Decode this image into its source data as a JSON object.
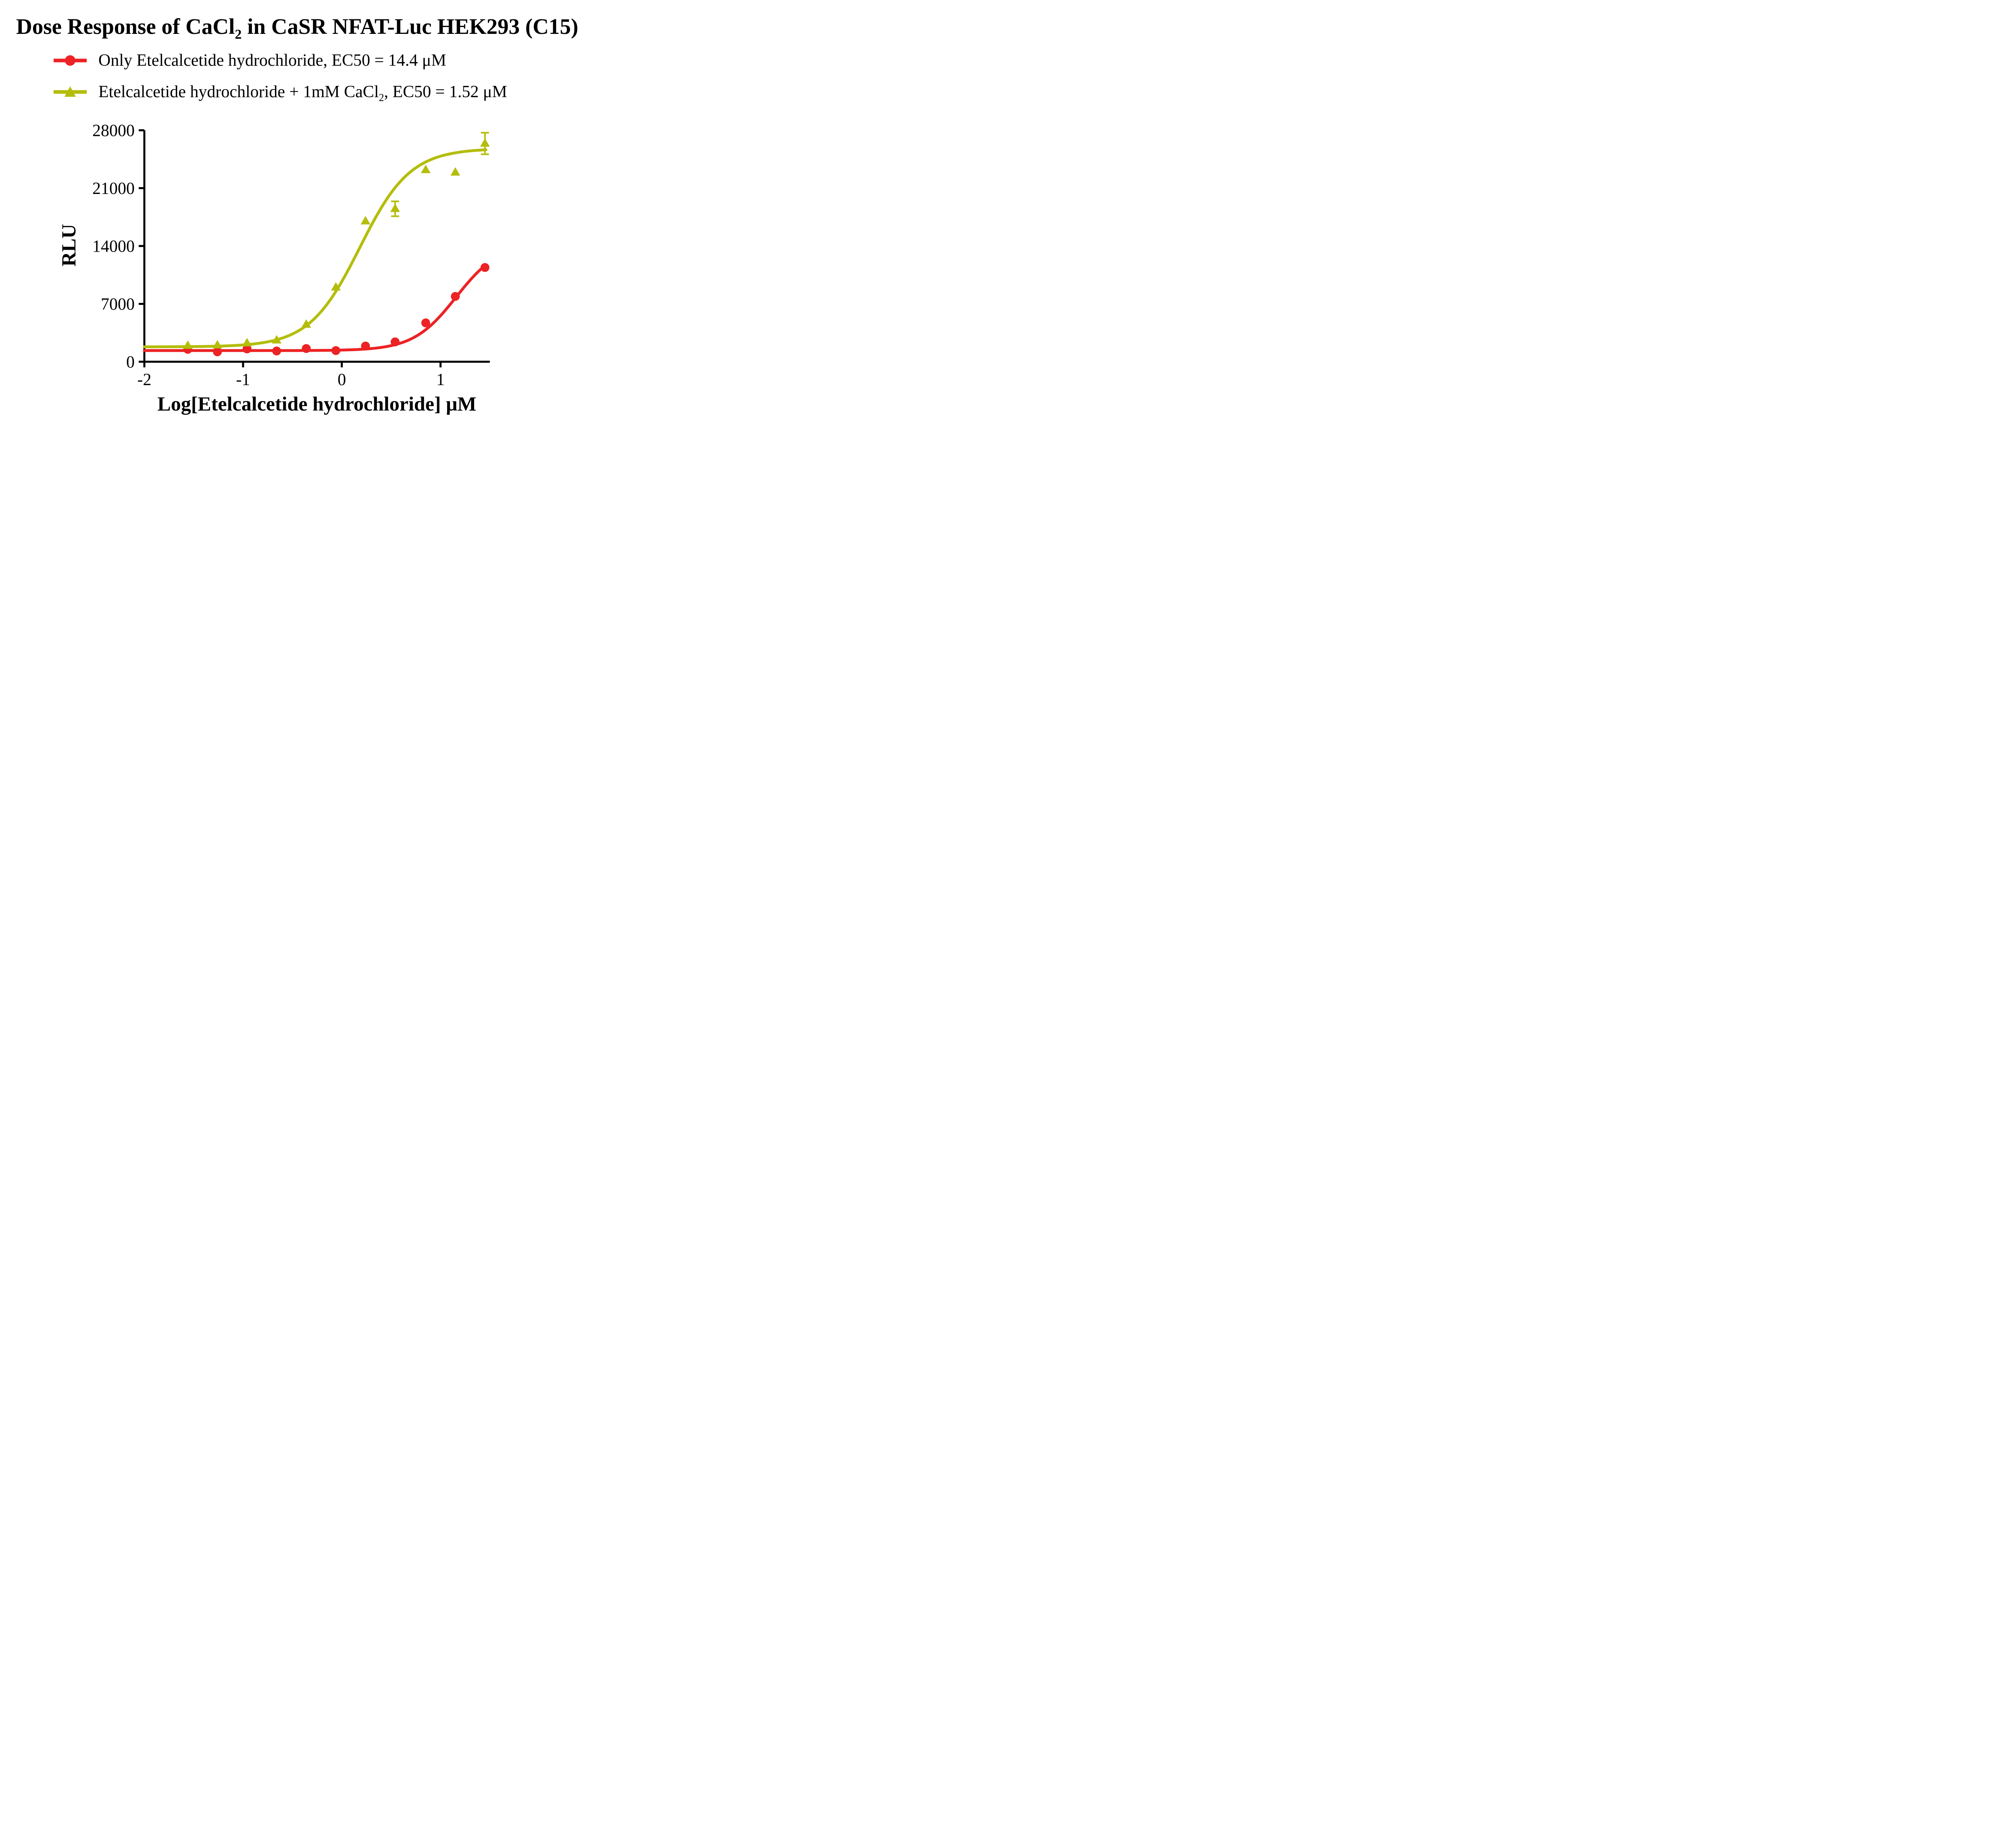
{
  "title": {
    "pre": "Dose Response of CaCl",
    "sub": "2",
    "post": " in CaSR NFAT-Luc HEK293 (C15)"
  },
  "legend": [
    {
      "pre": "Only Etelcalcetide hydrochloride, EC50 = 14.4 μM",
      "sub": "",
      "post": "",
      "color": "#ed2224",
      "marker": "circle"
    },
    {
      "pre": "Etelcalcetide hydrochloride + 1mM CaCl",
      "sub": "2",
      "post": ", EC50 = 1.52 μM",
      "color": "#b4bd0b",
      "marker": "triangle"
    }
  ],
  "chart_data": {
    "type": "scatter",
    "title": "Dose Response of CaCl2 in CaSR NFAT-Luc HEK293 (C15)",
    "xlabel": "Log[Etelcalcetide hydrochloride] μM",
    "ylabel": "RLU",
    "xlim": [
      -2,
      1.5
    ],
    "ylim": [
      0,
      28000
    ],
    "xticks": [
      -2,
      -1,
      0,
      1
    ],
    "yticks": [
      0,
      7000,
      14000,
      21000,
      28000
    ],
    "grid": false,
    "legend_position": "top-left",
    "series": [
      {
        "name": "Only Etelcalcetide hydrochloride",
        "ec50_um": 14.4,
        "color": "#ed2224",
        "marker": "circle",
        "x": [
          -1.56,
          -1.26,
          -0.96,
          -0.66,
          -0.36,
          -0.06,
          0.24,
          0.54,
          0.85,
          1.15,
          1.45
        ],
        "y": [
          1500,
          1200,
          1550,
          1300,
          1600,
          1350,
          1900,
          2400,
          4700,
          7900,
          11400
        ],
        "yerr": [
          0,
          0,
          0,
          0,
          0,
          0,
          0,
          0,
          0,
          0,
          0
        ],
        "fit": {
          "bottom": 1350,
          "top": 14300,
          "logec50": 1.158,
          "hill": 2.0,
          "xend": 1.46
        }
      },
      {
        "name": "Etelcalcetide hydrochloride + 1mM CaCl2",
        "ec50_um": 1.52,
        "color": "#b4bd0b",
        "marker": "triangle",
        "x": [
          -1.56,
          -1.26,
          -0.96,
          -0.66,
          -0.36,
          -0.06,
          0.24,
          0.54,
          0.85,
          1.15,
          1.45
        ],
        "y": [
          1950,
          2000,
          2250,
          2600,
          4500,
          9000,
          17000,
          18500,
          23200,
          22900,
          26400
        ],
        "yerr": [
          0,
          0,
          0,
          0,
          0,
          0,
          0,
          900,
          0,
          0,
          1300
        ],
        "fit": {
          "bottom": 1800,
          "top": 25800,
          "logec50": 0.182,
          "hill": 1.7,
          "xend": 1.46
        }
      }
    ]
  }
}
